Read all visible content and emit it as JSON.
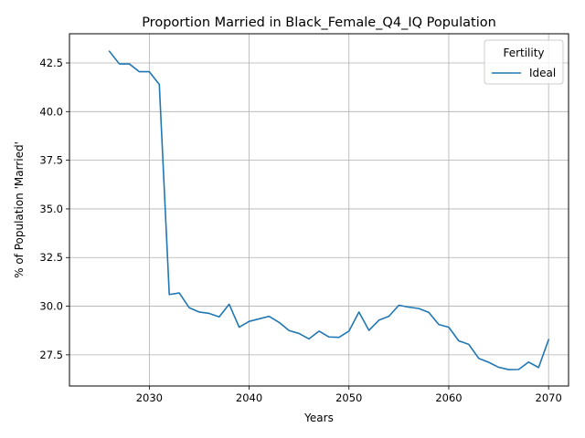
{
  "chart_data": {
    "type": "line",
    "title": "Proportion Married in Black_Female_Q4_IQ Population",
    "xlabel": "Years",
    "ylabel": "% of Population 'Married'",
    "xlim": [
      2022,
      2072
    ],
    "ylim": [
      25.9,
      44.0
    ],
    "xticks": [
      2030,
      2040,
      2050,
      2060,
      2070
    ],
    "yticks": [
      27.5,
      30.0,
      32.5,
      35.0,
      37.5,
      40.0,
      42.5
    ],
    "grid": true,
    "legend": {
      "title": "Fertility",
      "placement": "top-right"
    },
    "series": [
      {
        "name": "Ideal",
        "color": "#1f77b4",
        "x": [
          2026,
          2027,
          2028,
          2029,
          2030,
          2031,
          2032,
          2033,
          2034,
          2035,
          2036,
          2037,
          2038,
          2039,
          2040,
          2041,
          2042,
          2043,
          2044,
          2045,
          2046,
          2047,
          2048,
          2049,
          2050,
          2051,
          2052,
          2053,
          2054,
          2055,
          2056,
          2057,
          2058,
          2059,
          2060,
          2061,
          2062,
          2063,
          2064,
          2065,
          2066,
          2067,
          2068,
          2069,
          2070
        ],
        "y": [
          43.1,
          42.45,
          42.45,
          42.05,
          42.05,
          41.4,
          30.6,
          30.68,
          29.92,
          29.7,
          29.63,
          29.45,
          30.1,
          28.92,
          29.22,
          29.35,
          29.48,
          29.17,
          28.75,
          28.6,
          28.32,
          28.72,
          28.42,
          28.4,
          28.72,
          29.7,
          28.76,
          29.28,
          29.48,
          30.05,
          29.95,
          29.88,
          29.68,
          29.06,
          28.92,
          28.22,
          28.04,
          27.32,
          27.12,
          26.86,
          26.74,
          26.75,
          27.13,
          26.85,
          28.28
        ]
      }
    ]
  }
}
